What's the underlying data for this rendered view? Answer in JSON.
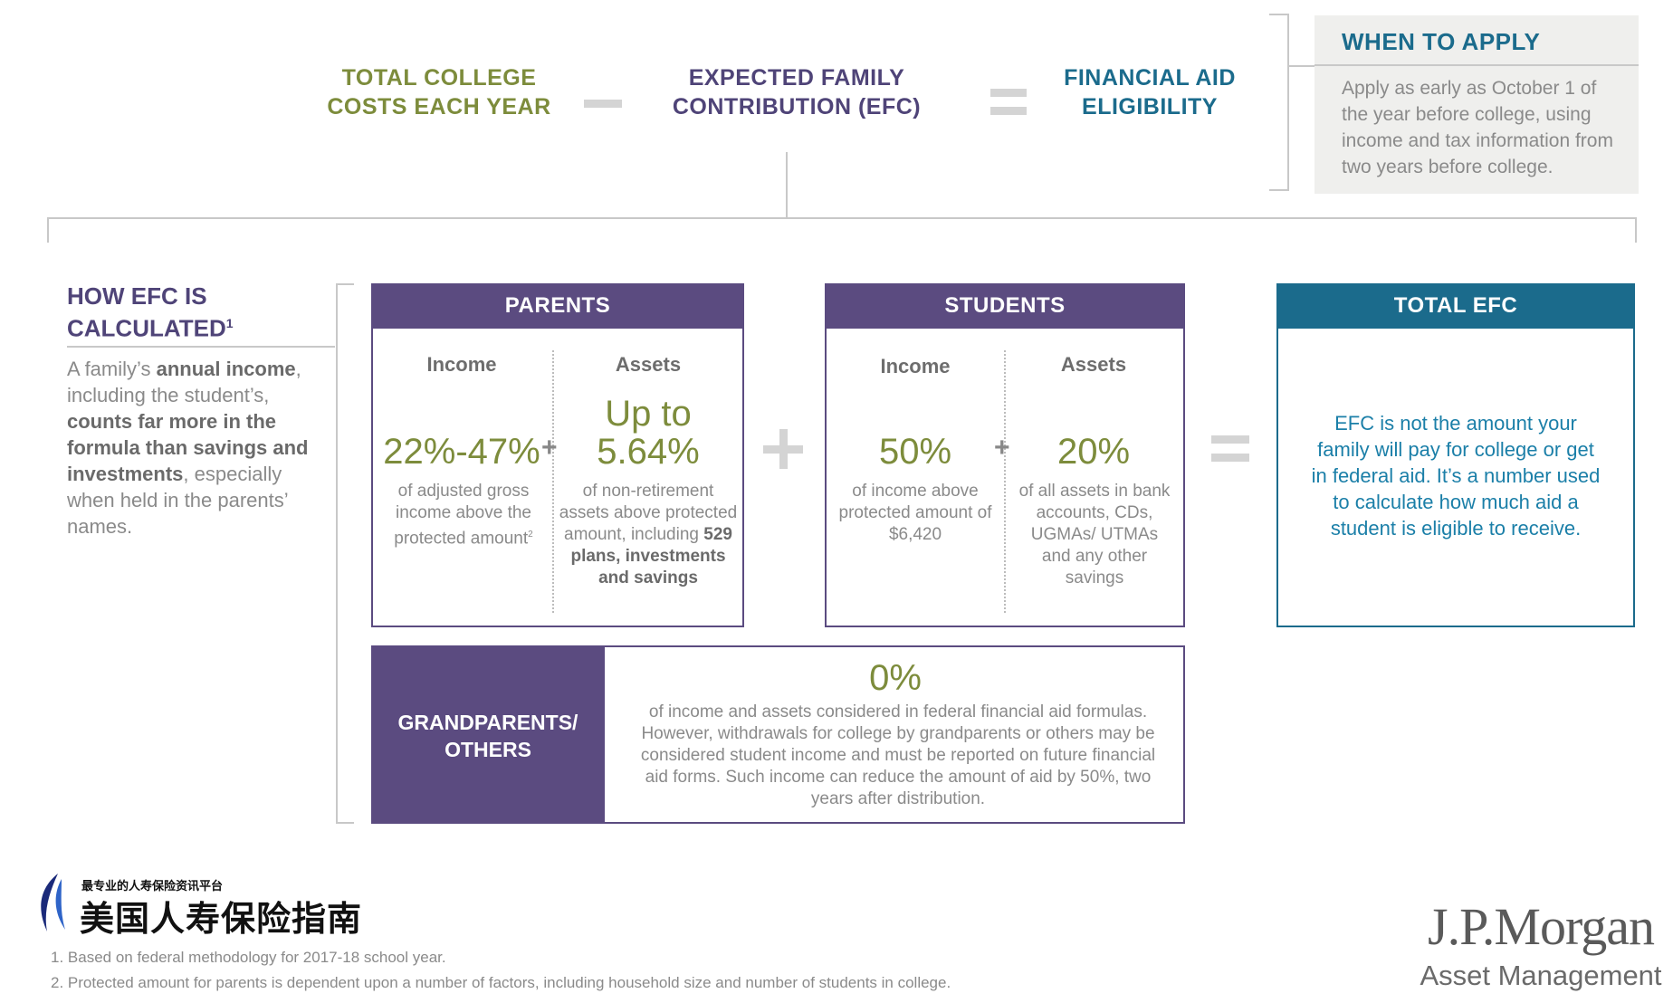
{
  "equation": {
    "term1": "TOTAL COLLEGE COSTS EACH YEAR",
    "term2": "EXPECTED FAMILY CONTRIBUTION (EFC)",
    "term3": "FINANCIAL AID ELIGIBILITY"
  },
  "when_to_apply": {
    "title": "WHEN TO APPLY",
    "text": "Apply as early as October 1 of the year before college, using income and tax information from two years before college."
  },
  "how_efc": {
    "title": "HOW EFC IS CALCULATED",
    "title_sup": "1",
    "p1": "A family’s ",
    "b1": "annual income",
    "p2": ", including the student’s, ",
    "b2": "counts far more in the formula than savings and investments",
    "p3": ", especially when held in the parents’ names."
  },
  "parents": {
    "header": "PARENTS",
    "income_label": "Income",
    "assets_label": "Assets",
    "income_pct": "22%-47%",
    "income_desc": "of adjusted gross income above the protected amount",
    "income_desc_sup": "2",
    "assets_up_to": "Up to",
    "assets_pct": "5.64%",
    "assets_desc": "of non-retirement assets above protected amount, including ",
    "assets_desc_bold": "529 plans, investments and savings"
  },
  "students": {
    "header": "STUDENTS",
    "income_label": "Income",
    "assets_label": "Assets",
    "income_pct": "50%",
    "income_desc": "of income above protected amount of $6,420",
    "assets_pct": "20%",
    "assets_desc": "of all assets in bank accounts, CDs, UGMAs/ UTMAs and any other savings"
  },
  "total_efc": {
    "header": "TOTAL EFC",
    "text": "EFC is not the amount your family will pay for college or get in federal aid. It’s a number used to calculate how much aid a student is eligible to receive."
  },
  "grandparents": {
    "label": "GRANDPARENTS/ OTHERS",
    "pct": "0%",
    "text": "of income and assets considered in federal financial aid formulas. However, withdrawals for college by grandparents or others may be considered student income and must be reported on future financial aid forms. Such income can reduce the amount of aid by 50%, two years after distribution."
  },
  "watermark": {
    "small": "最专业的人寿保险资讯平台",
    "large": "美国人寿保险指南"
  },
  "footnotes": [
    "1. Based on federal methodology for 2017-18 school year.",
    "2. Protected amount for parents is dependent upon a number of factors, including household size and number of students in college."
  ],
  "brand": {
    "name": "J.P.Morgan",
    "sub": "Asset Management"
  },
  "colors": {
    "purple": "#5b4b80",
    "teal": "#1b6b8c",
    "green": "#7d8c3c"
  }
}
